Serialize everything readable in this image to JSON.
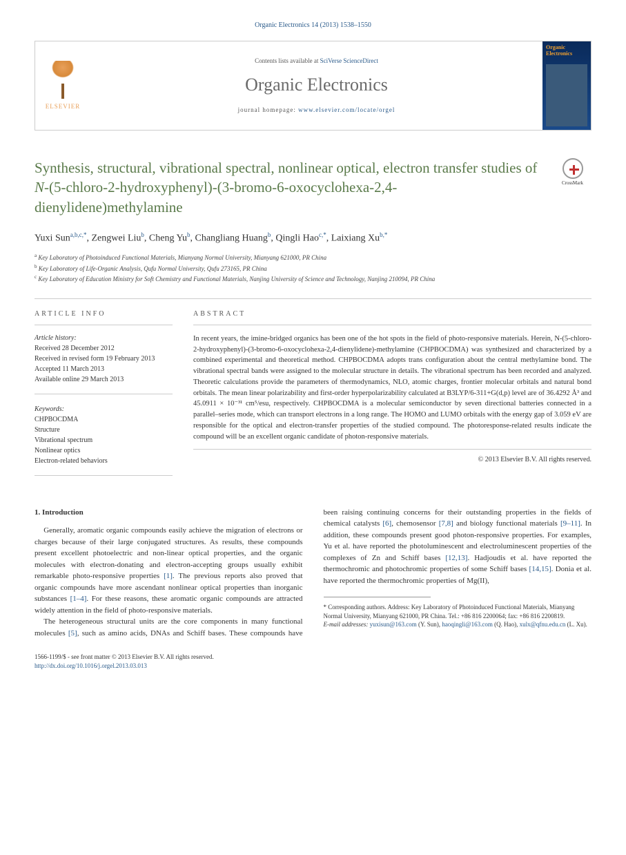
{
  "journal_ref": "Organic Electronics 14 (2013) 1538–1550",
  "header": {
    "elsevier": "ELSEVIER",
    "contents_prefix": "Contents lists available at ",
    "contents_link": "SciVerse ScienceDirect",
    "journal_name": "Organic Electronics",
    "homepage_prefix": "journal homepage: ",
    "homepage_url": "www.elsevier.com/locate/orgel",
    "cover_title": "Organic Electronics"
  },
  "crossmark": "CrossMark",
  "title": {
    "line1": "Synthesis, structural, vibrational spectral, nonlinear optical, electron transfer studies of ",
    "italic": "N",
    "line2": "-(5-chloro-2-hydroxyphenyl)-(3-bromo-6-oxocyclohexa-2,4-dienylidene)methylamine"
  },
  "authors_html": "Yuxi Sun<sup>a,b,c,*</sup>, Zengwei Liu<sup>b</sup>, Cheng Yu<sup>b</sup>, Changliang Huang<sup>b</sup>, Qingli Hao<sup>c,*</sup>, Laixiang Xu<sup>b,*</sup>",
  "affiliations": [
    {
      "sup": "a",
      "text": "Key Laboratory of Photoinduced Functional Materials, Mianyang Normal University, Mianyang 621000, PR China"
    },
    {
      "sup": "b",
      "text": "Key Laboratory of Life-Organic Analysis, Qufu Normal University, Qufu 273165, PR China"
    },
    {
      "sup": "c",
      "text": "Key Laboratory of Education Ministry for Soft Chemistry and Functional Materials, Nanjing University of Science and Technology, Nanjing 210094, PR China"
    }
  ],
  "info": {
    "heading": "ARTICLE INFO",
    "history_heading": "Article history:",
    "history": [
      "Received 28 December 2012",
      "Received in revised form 19 February 2013",
      "Accepted 11 March 2013",
      "Available online 29 March 2013"
    ],
    "keywords_heading": "Keywords:",
    "keywords": [
      "CHPBOCDMA",
      "Structure",
      "Vibrational spectrum",
      "Nonlinear optics",
      "Electron-related behaviors"
    ]
  },
  "abstract": {
    "heading": "ABSTRACT",
    "text": "In recent years, the imine-bridged organics has been one of the hot spots in the field of photo-responsive materials. Herein, N-(5-chloro-2-hydroxyphenyl)-(3-bromo-6-oxocyclohexa-2,4-dienylidene)-methylamine (CHPBOCDMA) was synthesized and characterized by a combined experimental and theoretical method. CHPBOCDMA adopts trans configuration about the central methylamine bond. The vibrational spectral bands were assigned to the molecular structure in details. The vibrational spectrum has been recorded and analyzed. Theoretic calculations provide the parameters of thermodynamics, NLO, atomic charges, frontier molecular orbitals and natural bond orbitals. The mean linear polarizability and first-order hyperpolarizability calculated at B3LYP/6-311+G(d,p) level are of 36.4292 Å³ and 45.0911 × 10⁻³¹ cm⁵/esu, respectively. CHPBOCDMA is a molecular semiconductor by seven directional batteries connected in a parallel–series mode, which can transport electrons in a long range. The HOMO and LUMO orbitals with the energy gap of 3.059 eV are responsible for the optical and electron-transfer properties of the studied compound. The photoresponse-related results indicate the compound will be an excellent organic candidate of photon-responsive materials.",
    "copyright": "© 2013 Elsevier B.V. All rights reserved."
  },
  "intro": {
    "heading": "1. Introduction",
    "p1": "Generally, aromatic organic compounds easily achieve the migration of electrons or charges because of their large conjugated structures. As results, these compounds present excellent photoelectric and non-linear optical properties, and the organic molecules with electron-donating and electron-accepting groups usually exhibit remarkable photo-responsive properties ",
    "ref1": "[1]",
    "p1b": ". The previous reports also proved that organic compounds have more ascendant nonlinear optical properties than inorganic substances ",
    "ref2": "[1–4]",
    "p1c": ". For these reasons, these aromatic organic compounds are attracted widely attention in the field of photo-responsive materials.",
    "p2": "The heterogeneous structural units are the core components in many functional molecules ",
    "ref3": "[5]",
    "p2b": ", such as amino acids, DNAs and Schiff bases. These compounds have been raising continuing concerns for their outstanding properties in the fields of chemical catalysts ",
    "ref4": "[6]",
    "p2c": ", chemosensor ",
    "ref5": "[7,8]",
    "p2d": " and biology functional materials ",
    "ref6": "[9–11]",
    "p2e": ". In addition, these compounds present good photon-responsive properties. For examples, Yu et al. have reported the photoluminescent and electroluminescent properties of the complexes of Zn and Schiff bases ",
    "ref7": "[12,13]",
    "p2f": ". Hadjoudis et al. have reported the thermochromic and photochromic properties of some Schiff bases ",
    "ref8": "[14,15]",
    "p2g": ". Donia et al. have reported the thermochromic properties of Mg(II),"
  },
  "footnote": {
    "corr": "* Corresponding authors. Address: Key Laboratory of Photoinduced Functional Materials, Mianyang Normal University, Mianyang 621000, PR China. Tel.: +86 816 2200064; fax: +86 816 2200819.",
    "email_label": "E-mail addresses:",
    "emails": "yuxisun@163.com (Y. Sun), haoqingli@163.com (Q. Hao), xulx@qfnu.edu.cn (L. Xu).",
    "email1": "yuxisun@163.com",
    "name1": " (Y. Sun), ",
    "email2": "haoqingli@163.com",
    "name2": " (Q. Hao), ",
    "email3": "xulx@qfnu.edu.cn",
    "name3": " (L. Xu)."
  },
  "footer": {
    "issn": "1566-1199/$ - see front matter © 2013 Elsevier B.V. All rights reserved.",
    "doi": "http://dx.doi.org/10.1016/j.orgel.2013.03.013"
  }
}
